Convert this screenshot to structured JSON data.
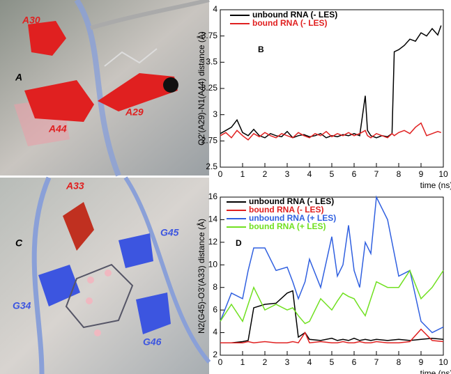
{
  "panels": {
    "A": {
      "letter": "A",
      "labels": [
        "A30",
        "A29",
        "A44"
      ]
    },
    "C": {
      "letter": "C",
      "labels": [
        "A33",
        "G45",
        "G34",
        "G46"
      ]
    }
  },
  "chart_data": [
    {
      "type": "line",
      "panel": "B",
      "ylabel": "O2'(A29)-N1(A44) distance (Å)",
      "xlabel": "time (ns)",
      "xlim": [
        0,
        10
      ],
      "ylim": [
        2.5,
        4
      ],
      "xticks": [
        0,
        1,
        2,
        3,
        4,
        5,
        6,
        7,
        8,
        9,
        10
      ],
      "yticks": [
        2.5,
        2.75,
        3,
        3.25,
        3.5,
        3.75,
        4
      ],
      "x": [
        0,
        0.25,
        0.5,
        0.75,
        1,
        1.25,
        1.5,
        1.75,
        2,
        2.25,
        2.5,
        2.75,
        3,
        3.25,
        3.5,
        3.75,
        4,
        4.25,
        4.5,
        4.75,
        5,
        5.25,
        5.5,
        5.75,
        6,
        6.25,
        6.5,
        6.6,
        6.75,
        7,
        7.25,
        7.5,
        7.7,
        7.8,
        8,
        8.25,
        8.5,
        8.75,
        9,
        9.25,
        9.5,
        9.75,
        9.9
      ],
      "series": [
        {
          "name": "unbound RNA (- LES)",
          "color": "#000000",
          "values": [
            2.82,
            2.85,
            2.88,
            2.95,
            2.83,
            2.8,
            2.86,
            2.8,
            2.78,
            2.82,
            2.8,
            2.79,
            2.84,
            2.78,
            2.8,
            2.81,
            2.79,
            2.8,
            2.82,
            2.78,
            2.8,
            2.79,
            2.81,
            2.8,
            2.82,
            2.8,
            3.18,
            2.85,
            2.8,
            2.78,
            2.8,
            2.79,
            2.82,
            3.6,
            3.62,
            3.66,
            3.72,
            3.7,
            3.78,
            3.75,
            3.82,
            3.76,
            3.85
          ]
        },
        {
          "name": "bound RNA (- LES)",
          "color": "#e02020",
          "values": [
            2.8,
            2.83,
            2.78,
            2.85,
            2.8,
            2.76,
            2.82,
            2.79,
            2.83,
            2.8,
            2.78,
            2.82,
            2.8,
            2.78,
            2.83,
            2.8,
            2.78,
            2.82,
            2.8,
            2.84,
            2.79,
            2.82,
            2.8,
            2.83,
            2.8,
            2.82,
            2.85,
            2.8,
            2.78,
            2.82,
            2.8,
            2.78,
            2.82,
            2.8,
            2.83,
            2.85,
            2.82,
            2.88,
            2.92,
            2.8,
            2.82,
            2.84,
            2.83
          ]
        }
      ]
    },
    {
      "type": "line",
      "panel": "D",
      "ylabel": "N2(G45)-O3'(A33) distance (Å)",
      "xlabel": "time (ns)",
      "xlim": [
        0,
        10
      ],
      "ylim": [
        2,
        16
      ],
      "xticks": [
        0,
        1,
        2,
        3,
        4,
        5,
        6,
        7,
        8,
        9,
        10
      ],
      "yticks": [
        2,
        4,
        6,
        8,
        10,
        12,
        14,
        16
      ],
      "x": [
        0,
        0.5,
        1,
        1.25,
        1.5,
        2,
        2.5,
        3,
        3.25,
        3.5,
        3.8,
        4,
        4.5,
        5,
        5.25,
        5.5,
        5.75,
        6,
        6.25,
        6.5,
        6.75,
        7,
        7.5,
        8,
        8.5,
        9,
        9.5,
        10
      ],
      "series": [
        {
          "name": "unbound RNA (- LES)",
          "color": "#000000",
          "values": [
            3.1,
            3.1,
            3.2,
            3.3,
            6.2,
            6.5,
            6.6,
            7.5,
            7.7,
            3.6,
            4,
            3.4,
            3.3,
            3.5,
            3.3,
            3.4,
            3.3,
            3.5,
            3.3,
            3.4,
            3.3,
            3.4,
            3.3,
            3.4,
            3.3,
            3.4,
            3.5,
            3.4
          ]
        },
        {
          "name": "bound RNA (- LES)",
          "color": "#e02020",
          "values": [
            3.1,
            3.1,
            3.1,
            3.2,
            3.1,
            3.2,
            3.1,
            3.1,
            3.2,
            3.1,
            4,
            3.1,
            3.2,
            3.1,
            3.1,
            3.2,
            3.1,
            3.1,
            3.2,
            3.1,
            3.1,
            3.2,
            3.1,
            3.1,
            3.2,
            4.3,
            3.3,
            3.2
          ]
        },
        {
          "name": "unbound RNA (+ LES)",
          "color": "#3060e0",
          "values": [
            5,
            7.5,
            7,
            9.5,
            11.5,
            11.5,
            9.5,
            9.8,
            8.5,
            7,
            8.5,
            10.5,
            8,
            12.5,
            9,
            10,
            13.5,
            9.5,
            8,
            12,
            11,
            16,
            14,
            9,
            9.5,
            5,
            4,
            4.5
          ]
        },
        {
          "name": "bound RNA (+ LES)",
          "color": "#70e020",
          "values": [
            5,
            6.5,
            5,
            6.5,
            8,
            6,
            6.5,
            6,
            6.2,
            5.5,
            4.8,
            5,
            7,
            6,
            6.8,
            7.5,
            7.2,
            7,
            6.2,
            5.5,
            7,
            8.5,
            8,
            8,
            9.5,
            7,
            8,
            9.5
          ]
        }
      ]
    }
  ]
}
